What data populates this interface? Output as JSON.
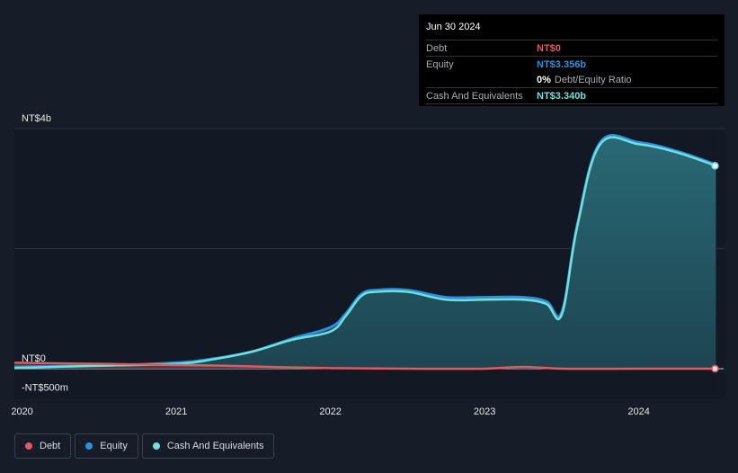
{
  "tooltip": {
    "date": "Jun 30 2024",
    "debt_label": "Debt",
    "debt_value": "NT$0",
    "equity_label": "Equity",
    "equity_value": "NT$3.356b",
    "ratio_value": "0%",
    "ratio_label": "Debt/Equity Ratio",
    "cash_label": "Cash And Equivalents",
    "cash_value": "NT$3.340b"
  },
  "legend": [
    {
      "label": "Debt",
      "color": "#e05a5f"
    },
    {
      "label": "Equity",
      "color": "#2d8fe0"
    },
    {
      "label": "Cash And Equivalents",
      "color": "#6fe0db"
    }
  ],
  "chart_data": {
    "type": "area",
    "y_unit": "NT$ billions",
    "ylim": [
      -0.5,
      4
    ],
    "y_tick_labels": [
      {
        "value": 4,
        "label": "NT$4b"
      },
      {
        "value": 0,
        "label": "NT$0"
      },
      {
        "value": -0.5,
        "label": "-NT$500m"
      }
    ],
    "gridlines": [
      4,
      2,
      0
    ],
    "xlim": [
      2019.95,
      2024.55
    ],
    "x_tick_labels": [
      {
        "value": 2020,
        "label": "2020"
      },
      {
        "value": 2021,
        "label": "2021"
      },
      {
        "value": 2022,
        "label": "2022"
      },
      {
        "value": 2023,
        "label": "2023"
      },
      {
        "value": 2024,
        "label": "2024"
      }
    ],
    "series": [
      {
        "name": "Debt",
        "color": "#e05a5f",
        "points": [
          [
            2019.95,
            0.1
          ],
          [
            2020.5,
            0.08
          ],
          [
            2021,
            0.06
          ],
          [
            2021.3,
            0.05
          ],
          [
            2021.6,
            0.03
          ],
          [
            2022,
            0.01
          ],
          [
            2022.5,
            0
          ],
          [
            2023,
            0
          ],
          [
            2023.25,
            0.03
          ],
          [
            2023.5,
            0
          ],
          [
            2024,
            0
          ],
          [
            2024.5,
            0
          ]
        ]
      },
      {
        "name": "Equity",
        "color": "#2d8fe0",
        "points": [
          [
            2019.95,
            0.03
          ],
          [
            2020.5,
            0.05
          ],
          [
            2021,
            0.1
          ],
          [
            2021.25,
            0.17
          ],
          [
            2021.5,
            0.29
          ],
          [
            2021.75,
            0.5
          ],
          [
            2022,
            0.69
          ],
          [
            2022.1,
            0.92
          ],
          [
            2022.2,
            1.24
          ],
          [
            2022.3,
            1.31
          ],
          [
            2022.5,
            1.31
          ],
          [
            2022.75,
            1.19
          ],
          [
            2023,
            1.19
          ],
          [
            2023.25,
            1.19
          ],
          [
            2023.4,
            1.12
          ],
          [
            2023.5,
            0.94
          ],
          [
            2023.6,
            2.38
          ],
          [
            2023.75,
            3.77
          ],
          [
            2024,
            3.77
          ],
          [
            2024.25,
            3.62
          ],
          [
            2024.5,
            3.4
          ]
        ]
      },
      {
        "name": "Cash And Equivalents",
        "color": "#6fe0db",
        "points": [
          [
            2019.95,
            0.01
          ],
          [
            2020.5,
            0.05
          ],
          [
            2021,
            0.08
          ],
          [
            2021.25,
            0.16
          ],
          [
            2021.5,
            0.29
          ],
          [
            2021.75,
            0.48
          ],
          [
            2022,
            0.62
          ],
          [
            2022.1,
            0.88
          ],
          [
            2022.2,
            1.21
          ],
          [
            2022.3,
            1.28
          ],
          [
            2022.5,
            1.28
          ],
          [
            2022.75,
            1.15
          ],
          [
            2023,
            1.15
          ],
          [
            2023.25,
            1.15
          ],
          [
            2023.4,
            1.08
          ],
          [
            2023.5,
            0.9
          ],
          [
            2023.6,
            2.36
          ],
          [
            2023.75,
            3.74
          ],
          [
            2024,
            3.74
          ],
          [
            2024.25,
            3.6
          ],
          [
            2024.5,
            3.38
          ]
        ]
      }
    ]
  }
}
